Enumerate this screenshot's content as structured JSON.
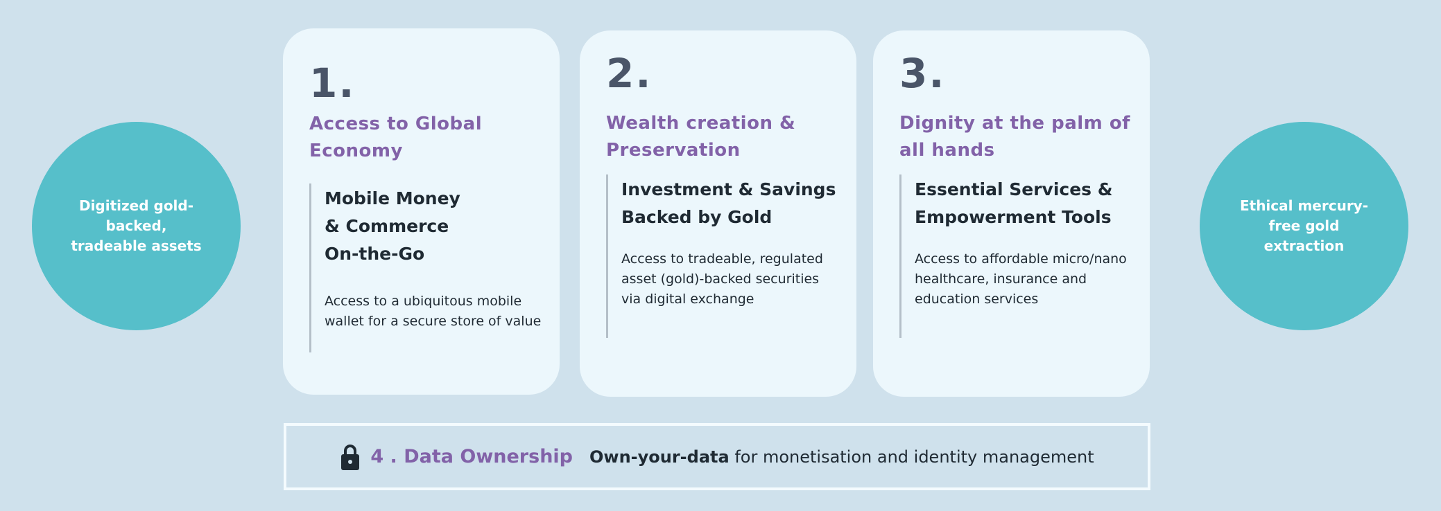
{
  "left_circle": {
    "label": "Digitized gold-backed, tradeable assets"
  },
  "right_circle": {
    "label": "Ethical mercury-free gold extraction"
  },
  "cards": [
    {
      "number": "1.",
      "title": "Access to Global Economy",
      "subtitle": "Mobile Money & Commerce On-the-Go",
      "body": "Access to a ubiquitous mobile wallet for a secure store of value"
    },
    {
      "number": "2.",
      "title": "Wealth creation & Preservation",
      "subtitle": "Investment & Savings Backed by Gold",
      "body": "Access to tradeable, regulated asset (gold)-backed securities via digital exchange"
    },
    {
      "number": "3.",
      "title": "Dignity at the palm of all hands",
      "subtitle": "Essential Services & Empowerment Tools",
      "body": "Access to affordable micro/nano healthcare, insurance and education services"
    }
  ],
  "bottom": {
    "icon": "lock-icon",
    "title": "4 . Data Ownership",
    "bold_text": "Own-your-data",
    "text": " for monetisation and identity management"
  },
  "colors": {
    "background": "#cfe1ec",
    "card": "#ecf7fc",
    "circle": "#56bfca",
    "accent": "#8262a8",
    "number": "#4a5568",
    "text": "#1f2a33"
  }
}
